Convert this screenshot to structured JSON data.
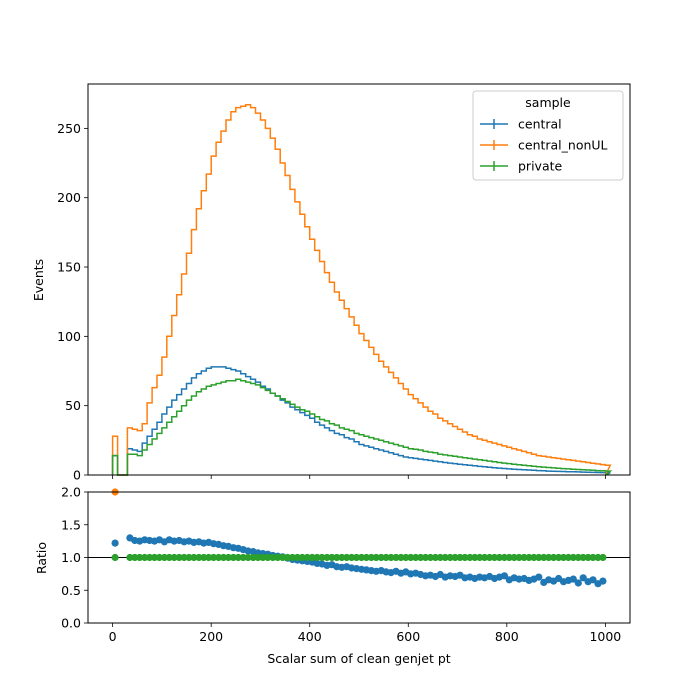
{
  "chart_data": [
    {
      "type": "line",
      "drawstyle": "steps-post",
      "xlabel": "",
      "ylabel": "Events",
      "xlim": [
        -50,
        1050
      ],
      "ylim": [
        0,
        282
      ],
      "xticks": [
        0,
        200,
        400,
        600,
        800,
        1000
      ],
      "yticks": [
        0,
        50,
        100,
        150,
        200,
        250
      ],
      "yticklabels": [
        "0",
        "50",
        "100",
        "150",
        "200",
        "250"
      ],
      "legend": {
        "title": "sample",
        "placement": "upper right",
        "entries": [
          "central",
          "central_nonUL",
          "private"
        ]
      },
      "series": [
        {
          "name": "central",
          "color": "#1f77b4",
          "x": [
            0,
            10,
            20,
            30,
            40,
            50,
            60,
            70,
            80,
            90,
            100,
            110,
            120,
            130,
            140,
            150,
            160,
            170,
            180,
            190,
            200,
            210,
            220,
            230,
            240,
            250,
            260,
            270,
            280,
            290,
            300,
            310,
            320,
            330,
            340,
            350,
            360,
            370,
            380,
            390,
            400,
            410,
            420,
            430,
            440,
            450,
            460,
            470,
            480,
            490,
            500,
            510,
            520,
            530,
            540,
            550,
            560,
            570,
            580,
            590,
            600,
            610,
            620,
            630,
            640,
            650,
            660,
            670,
            680,
            690,
            700,
            710,
            720,
            730,
            740,
            750,
            760,
            770,
            780,
            790,
            800,
            810,
            820,
            830,
            840,
            850,
            860,
            870,
            880,
            890,
            900,
            910,
            920,
            930,
            940,
            950,
            960,
            970,
            980,
            990,
            1000
          ],
          "values": [
            14,
            0,
            0,
            19,
            18,
            17,
            23,
            28,
            33,
            38,
            44,
            49,
            54,
            58,
            62,
            66,
            70,
            73,
            75,
            77,
            78,
            78,
            78,
            77,
            76,
            75,
            73,
            71,
            69,
            67,
            64,
            62,
            59,
            57,
            54,
            52,
            49,
            47,
            45,
            43,
            41,
            38,
            36,
            34,
            32,
            30,
            29,
            27,
            26,
            24,
            22,
            21,
            20,
            19,
            18,
            17,
            16,
            15,
            14,
            13,
            12.5,
            12,
            11.5,
            11,
            10.5,
            10,
            9.5,
            9,
            8.6,
            8.2,
            7.8,
            7.4,
            7,
            6.6,
            6.2,
            5.9,
            5.6,
            5.3,
            5.0,
            4.7,
            4.4,
            4.2,
            4.0,
            3.8,
            3.6,
            3.4,
            3.2,
            3.0,
            2.8,
            2.7,
            2.6,
            2.5,
            2.4,
            2.3,
            2.2,
            2.1,
            2.0,
            1.9,
            1.8,
            1.7,
            1.6
          ]
        },
        {
          "name": "central_nonUL",
          "color": "#ff7f0e",
          "x": [
            0,
            10,
            20,
            30,
            40,
            50,
            60,
            70,
            80,
            90,
            100,
            110,
            120,
            130,
            140,
            150,
            160,
            170,
            180,
            190,
            200,
            210,
            220,
            230,
            240,
            250,
            260,
            270,
            280,
            290,
            300,
            310,
            320,
            330,
            340,
            350,
            360,
            370,
            380,
            390,
            400,
            410,
            420,
            430,
            440,
            450,
            460,
            470,
            480,
            490,
            500,
            510,
            520,
            530,
            540,
            550,
            560,
            570,
            580,
            590,
            600,
            610,
            620,
            630,
            640,
            650,
            660,
            670,
            680,
            690,
            700,
            710,
            720,
            730,
            740,
            750,
            760,
            770,
            780,
            790,
            800,
            810,
            820,
            830,
            840,
            850,
            860,
            870,
            880,
            890,
            900,
            910,
            920,
            930,
            940,
            950,
            960,
            970,
            980,
            990,
            1000
          ],
          "values": [
            28,
            0,
            0,
            34,
            33,
            32,
            37,
            52,
            63,
            72,
            85,
            100,
            115,
            130,
            145,
            160,
            177,
            192,
            205,
            217,
            230,
            240,
            248,
            256,
            262,
            265,
            266,
            267,
            265,
            261,
            256,
            250,
            243,
            235,
            225,
            216,
            206,
            197,
            188,
            179,
            170,
            162,
            154,
            146,
            139,
            132,
            126,
            120,
            114,
            108,
            102,
            97,
            92,
            87,
            82,
            78,
            74,
            70,
            66,
            62,
            58,
            55,
            52,
            49,
            46,
            44,
            41,
            39,
            37,
            35,
            33,
            31,
            29,
            28,
            26,
            25,
            24,
            23,
            22,
            21,
            20,
            19,
            18,
            17,
            16,
            15,
            14,
            13.5,
            13,
            12.5,
            12,
            11.5,
            11,
            10.5,
            10,
            9.5,
            9,
            8.5,
            8,
            7.5,
            7
          ]
        },
        {
          "name": "private",
          "color": "#2ca02c",
          "x": [
            0,
            10,
            20,
            30,
            40,
            50,
            60,
            70,
            80,
            90,
            100,
            110,
            120,
            130,
            140,
            150,
            160,
            170,
            180,
            190,
            200,
            210,
            220,
            230,
            240,
            250,
            260,
            270,
            280,
            290,
            300,
            310,
            320,
            330,
            340,
            350,
            360,
            370,
            380,
            390,
            400,
            410,
            420,
            430,
            440,
            450,
            460,
            470,
            480,
            490,
            500,
            510,
            520,
            530,
            540,
            550,
            560,
            570,
            580,
            590,
            600,
            610,
            620,
            630,
            640,
            650,
            660,
            670,
            680,
            690,
            700,
            710,
            720,
            730,
            740,
            750,
            760,
            770,
            780,
            790,
            800,
            810,
            820,
            830,
            840,
            850,
            860,
            870,
            880,
            890,
            900,
            910,
            920,
            930,
            940,
            950,
            960,
            970,
            980,
            990,
            1000
          ],
          "values": [
            14,
            0,
            0,
            15,
            15,
            14,
            18,
            22,
            26,
            30,
            34,
            38,
            42,
            46,
            50,
            54,
            57,
            60,
            62,
            64,
            65,
            66,
            67,
            68,
            68,
            69,
            68,
            67,
            66,
            65,
            63,
            61,
            59,
            57,
            55,
            53,
            51,
            49,
            47,
            46,
            44,
            42,
            40,
            39,
            37,
            36,
            34,
            33,
            32,
            30,
            29,
            28,
            27,
            26,
            25,
            24,
            23,
            22,
            21,
            20,
            19,
            18.5,
            18,
            17,
            16.5,
            16,
            15,
            14.5,
            14,
            13.5,
            13,
            12.5,
            12,
            11.5,
            11,
            10.5,
            10,
            9.5,
            9,
            8.6,
            8.2,
            7.8,
            7.4,
            7,
            6.6,
            6.3,
            6,
            5.7,
            5.4,
            5.1,
            4.8,
            4.6,
            4.4,
            4.2,
            4,
            3.8,
            3.6,
            3.4,
            3.2,
            3.0,
            2.8
          ]
        }
      ]
    },
    {
      "type": "scatter",
      "xlabel": "Scalar sum of clean genjet pt",
      "ylabel": "Ratio",
      "xlim": [
        -50,
        1050
      ],
      "ylim": [
        0,
        2
      ],
      "xticks": [
        0,
        200,
        400,
        600,
        800,
        1000
      ],
      "xticklabels": [
        "0",
        "200",
        "400",
        "600",
        "800",
        "1000"
      ],
      "yticks": [
        0,
        0.5,
        1.0,
        1.5,
        2.0
      ],
      "yticklabels": [
        "0.0",
        "0.5",
        "1.0",
        "1.5",
        "2.0"
      ],
      "reference_line": 1.0,
      "series": [
        {
          "name": "central_nonUL",
          "color": "#ff7f0e",
          "x": [
            5
          ],
          "values": [
            2.0
          ]
        },
        {
          "name": "central",
          "color": "#1f77b4",
          "x": [
            5,
            35,
            45,
            55,
            65,
            75,
            85,
            95,
            105,
            115,
            125,
            135,
            145,
            155,
            165,
            175,
            185,
            195,
            205,
            215,
            225,
            235,
            245,
            255,
            265,
            275,
            285,
            295,
            305,
            315,
            325,
            335,
            345,
            355,
            365,
            375,
            385,
            395,
            405,
            415,
            425,
            435,
            445,
            455,
            465,
            475,
            485,
            495,
            505,
            515,
            525,
            535,
            545,
            555,
            565,
            575,
            585,
            595,
            605,
            615,
            625,
            635,
            645,
            655,
            665,
            675,
            685,
            695,
            705,
            715,
            725,
            735,
            745,
            755,
            765,
            775,
            785,
            795,
            805,
            815,
            825,
            835,
            845,
            855,
            865,
            875,
            885,
            895,
            905,
            915,
            925,
            935,
            945,
            955,
            965,
            975,
            985,
            995
          ],
          "values": [
            1.22,
            1.3,
            1.26,
            1.25,
            1.27,
            1.26,
            1.25,
            1.27,
            1.24,
            1.27,
            1.25,
            1.26,
            1.24,
            1.25,
            1.23,
            1.24,
            1.22,
            1.23,
            1.21,
            1.2,
            1.18,
            1.17,
            1.15,
            1.14,
            1.12,
            1.1,
            1.09,
            1.07,
            1.06,
            1.05,
            1.03,
            1.02,
            1.01,
            0.99,
            0.97,
            0.96,
            0.95,
            0.94,
            0.93,
            0.91,
            0.9,
            0.88,
            0.89,
            0.86,
            0.85,
            0.86,
            0.84,
            0.83,
            0.82,
            0.81,
            0.8,
            0.79,
            0.8,
            0.78,
            0.77,
            0.79,
            0.76,
            0.78,
            0.75,
            0.76,
            0.74,
            0.72,
            0.73,
            0.71,
            0.74,
            0.7,
            0.72,
            0.71,
            0.73,
            0.69,
            0.7,
            0.68,
            0.7,
            0.69,
            0.71,
            0.68,
            0.7,
            0.72,
            0.66,
            0.69,
            0.67,
            0.68,
            0.65,
            0.67,
            0.7,
            0.62,
            0.66,
            0.64,
            0.68,
            0.63,
            0.65,
            0.67,
            0.61,
            0.69,
            0.63,
            0.66,
            0.6,
            0.64
          ]
        },
        {
          "name": "private",
          "color": "#2ca02c",
          "x": [
            5,
            35,
            45,
            55,
            65,
            75,
            85,
            95,
            105,
            115,
            125,
            135,
            145,
            155,
            165,
            175,
            185,
            195,
            205,
            215,
            225,
            235,
            245,
            255,
            265,
            275,
            285,
            295,
            305,
            315,
            325,
            335,
            345,
            355,
            365,
            375,
            385,
            395,
            405,
            415,
            425,
            435,
            445,
            455,
            465,
            475,
            485,
            495,
            505,
            515,
            525,
            535,
            545,
            555,
            565,
            575,
            585,
            595,
            605,
            615,
            625,
            635,
            645,
            655,
            665,
            675,
            685,
            695,
            705,
            715,
            725,
            735,
            745,
            755,
            765,
            775,
            785,
            795,
            805,
            815,
            825,
            835,
            845,
            855,
            865,
            875,
            885,
            895,
            905,
            915,
            925,
            935,
            945,
            955,
            965,
            975,
            985,
            995
          ],
          "values": [
            1,
            1,
            1,
            1,
            1,
            1,
            1,
            1,
            1,
            1,
            1,
            1,
            1,
            1,
            1,
            1,
            1,
            1,
            1,
            1,
            1,
            1,
            1,
            1,
            1,
            1,
            1,
            1,
            1,
            1,
            1,
            1,
            1,
            1,
            1,
            1,
            1,
            1,
            1,
            1,
            1,
            1,
            1,
            1,
            1,
            1,
            1,
            1,
            1,
            1,
            1,
            1,
            1,
            1,
            1,
            1,
            1,
            1,
            1,
            1,
            1,
            1,
            1,
            1,
            1,
            1,
            1,
            1,
            1,
            1,
            1,
            1,
            1,
            1,
            1,
            1,
            1,
            1,
            1,
            1,
            1,
            1,
            1,
            1,
            1,
            1,
            1,
            1,
            1,
            1,
            1,
            1,
            1,
            1,
            1,
            1,
            1,
            1
          ]
        }
      ]
    }
  ]
}
